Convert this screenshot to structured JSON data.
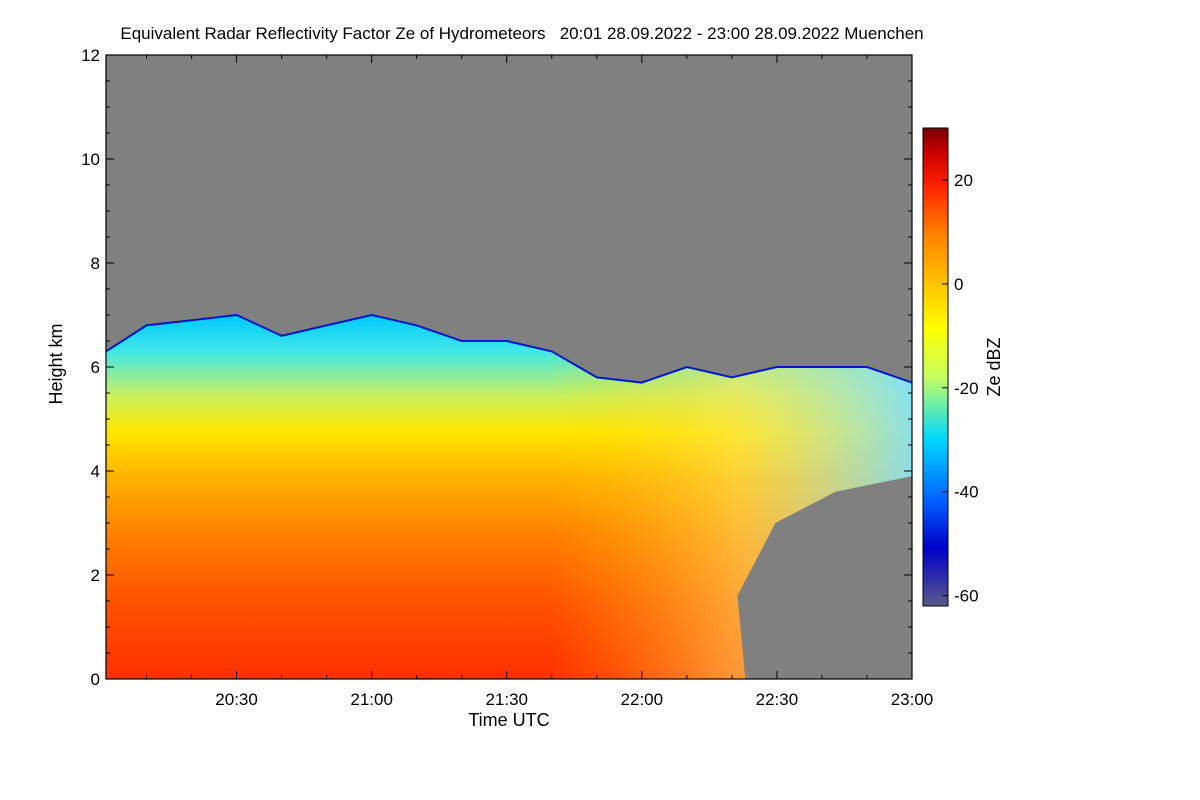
{
  "chart_data": {
    "type": "heatmap",
    "title": "Equivalent Radar Reflectivity Factor Ze of Hydrometeors   20:01 28.09.2022 - 23:00 28.09.2022 Muenchen",
    "xlabel": "Time UTC",
    "ylabel": "Height km",
    "colorbar_label": "Ze dBZ",
    "xlim_minutes_after_2000": [
      1,
      180
    ],
    "ylim": [
      0,
      12
    ],
    "x_ticks": [
      {
        "label": "20:30",
        "value": 30
      },
      {
        "label": "21:00",
        "value": 60
      },
      {
        "label": "21:30",
        "value": 90
      },
      {
        "label": "22:00",
        "value": 120
      },
      {
        "label": "22:30",
        "value": 150
      },
      {
        "label": "23:00",
        "value": 180
      }
    ],
    "y_ticks": [
      0,
      2,
      4,
      6,
      8,
      10,
      12
    ],
    "colorbar_range": [
      -62,
      30
    ],
    "colorbar_ticks": [
      20,
      0,
      -20,
      -40,
      -60
    ],
    "background_color": "#808080",
    "colormap": [
      "#5a5a8c",
      "#0000c8",
      "#0060ff",
      "#00d8ff",
      "#c8ff60",
      "#ffff00",
      "#ffc000",
      "#ff8000",
      "#ff2000",
      "#c80000",
      "#780000"
    ],
    "echo_top_km": [
      {
        "time": "20:01",
        "value": 6.3
      },
      {
        "time": "20:10",
        "value": 6.8
      },
      {
        "time": "20:20",
        "value": 6.9
      },
      {
        "time": "20:30",
        "value": 7.0
      },
      {
        "time": "20:40",
        "value": 6.6
      },
      {
        "time": "20:50",
        "value": 6.8
      },
      {
        "time": "21:00",
        "value": 7.0
      },
      {
        "time": "21:10",
        "value": 6.8
      },
      {
        "time": "21:20",
        "value": 6.5
      },
      {
        "time": "21:30",
        "value": 6.5
      },
      {
        "time": "21:40",
        "value": 6.3
      },
      {
        "time": "21:50",
        "value": 5.8
      },
      {
        "time": "22:00",
        "value": 5.7
      },
      {
        "time": "22:10",
        "value": 6.0
      },
      {
        "time": "22:20",
        "value": 5.8
      },
      {
        "time": "22:30",
        "value": 6.0
      },
      {
        "time": "22:40",
        "value": 6.0
      },
      {
        "time": "22:50",
        "value": 6.0
      },
      {
        "time": "23:00",
        "value": 5.7
      }
    ]
  }
}
